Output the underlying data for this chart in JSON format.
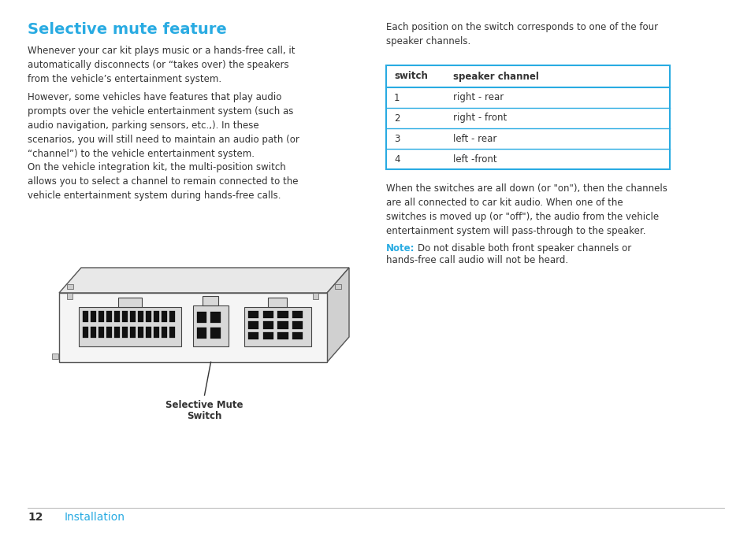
{
  "title": "Selective mute feature",
  "title_color": "#29abe2",
  "bg_color": "#ffffff",
  "text_color": "#333333",
  "cyan_color": "#29abe2",
  "page_number": "12",
  "page_label": "Installation",
  "left_paragraphs": [
    "Whenever your car kit plays music or a hands-free call, it\nautomatically disconnects (or “takes over) the speakers\nfrom the vehicle’s entertainment system.",
    "However, some vehicles have features that play audio\nprompts over the vehicle entertainment system (such as\naudio navigation, parking sensors, etc.,). In these\nscenarios, you will still need to maintain an audio path (or\n“channel”) to the vehicle entertainment system.",
    "On the vehicle integration kit, the multi-position switch\nallows you to select a channel to remain connected to the\nvehicle entertainment system during hands-free calls."
  ],
  "right_intro": "Each position on the switch corresponds to one of the four\nspeaker channels.",
  "table_headers": [
    "switch",
    "speaker channel"
  ],
  "table_rows": [
    [
      "1",
      "right - rear"
    ],
    [
      "2",
      "right - front"
    ],
    [
      "3",
      "left - rear"
    ],
    [
      "4",
      "left -front"
    ]
  ],
  "right_para1": "When the switches are all down (or \"on\"), then the channels\nare all connected to car kit audio. When one of the\nswitches is moved up (or \"off\"), the audio from the vehicle\nentertainment system will pass-through to the speaker.",
  "note_label": "Note:",
  "note_line1": "Do not disable both front speaker channels or",
  "note_line2": "hands-free call audio will not be heard.",
  "device_label_line1": "Selective Mute",
  "device_label_line2": "Switch",
  "table_border_color": "#29abe2",
  "table_line_color": "#29abe2"
}
